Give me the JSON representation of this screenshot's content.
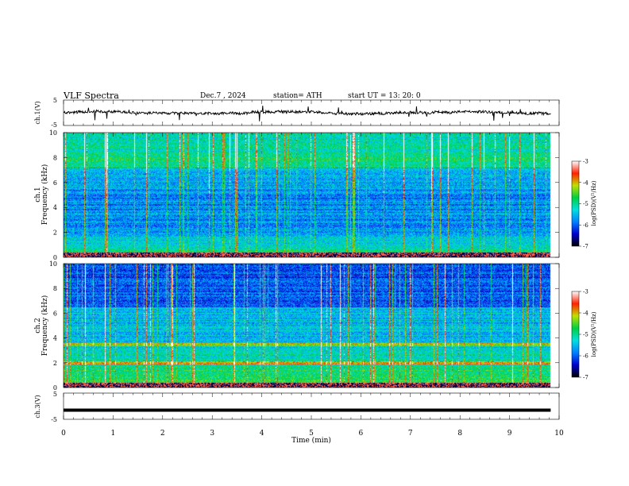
{
  "header": {
    "title": "VLF  Spectra",
    "date": "Dec.7  , 2024",
    "station": "station= ATH",
    "start": "start  UT  =    13: 20: 0"
  },
  "chart_data": [
    {
      "type": "line",
      "name": "ch1-waveform",
      "ylabel": "ch.1(V)",
      "ylim": [
        -5,
        5
      ],
      "yticks": [
        "5",
        "-5"
      ],
      "xlim": [
        0,
        10
      ],
      "trace_color": "#000000"
    },
    {
      "type": "heatmap",
      "name": "ch1-spectrogram",
      "ylabel_channel": "ch.1",
      "ylabel": "Frequency  (kHz)",
      "ylim": [
        0,
        10
      ],
      "yticks": [
        "0",
        "2",
        "4",
        "6",
        "8",
        "10"
      ],
      "xlim": [
        0,
        10
      ],
      "data_end_min": 9.83,
      "colorbar": {
        "label": "log(PSD)(V²/Hz)",
        "ticks": [
          "-3",
          "-4",
          "-5",
          "-6",
          "-7"
        ],
        "range": [
          -7,
          -3
        ],
        "colors": [
          "#000000",
          "#0000d0",
          "#0080ff",
          "#00e0e0",
          "#00d040",
          "#c0e000",
          "#ff2000",
          "#ffffff"
        ]
      }
    },
    {
      "type": "heatmap",
      "name": "ch2-spectrogram",
      "ylabel_channel": "ch.2",
      "ylabel": "Frequency  (kHz)",
      "ylim": [
        0,
        10
      ],
      "yticks": [
        "0",
        "2",
        "4",
        "6",
        "8",
        "10"
      ],
      "xlim": [
        0,
        10
      ],
      "data_end_min": 9.83,
      "colorbar": {
        "label": "log(PSD)(V²/Hz)",
        "ticks": [
          "-3",
          "-4",
          "-5",
          "-6",
          "-7"
        ],
        "range": [
          -7,
          -3
        ],
        "colors": [
          "#000000",
          "#0000d0",
          "#0080ff",
          "#00e0e0",
          "#00d040",
          "#c0e000",
          "#ff2000",
          "#ffffff"
        ]
      }
    },
    {
      "type": "line",
      "name": "ch3-waveform",
      "ylabel": "ch.3(V)",
      "ylim": [
        -5,
        5
      ],
      "yticks": [
        "5",
        "-5"
      ],
      "xlim": [
        0,
        10
      ],
      "trace_level_v": -1.5,
      "trace_color": "#000000"
    }
  ],
  "xaxis": {
    "label": "Time  (min)",
    "ticks": [
      "0",
      "1",
      "2",
      "3",
      "4",
      "5",
      "6",
      "7",
      "8",
      "9",
      "10"
    ]
  }
}
